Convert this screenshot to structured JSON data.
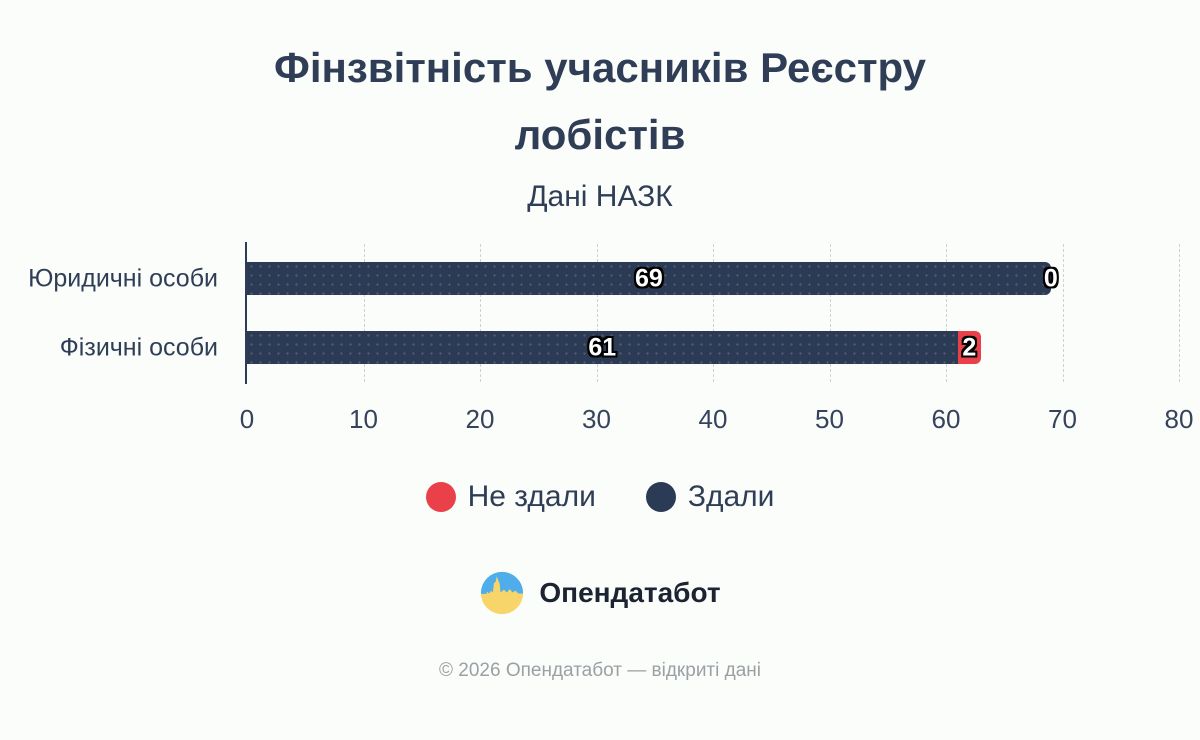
{
  "page": {
    "background_color": "#fbfdfa"
  },
  "header": {
    "title": "Фінзвітність учасників Реєстру лобістів",
    "subtitle": "Дані НАЗК"
  },
  "chart_data": {
    "type": "bar",
    "orientation": "horizontal",
    "title": "Фінзвітність учасників Реєстру лобістів",
    "subtitle": "Дані НАЗК",
    "categories": [
      "Юридичні особи",
      "Фізичні особи"
    ],
    "series": [
      {
        "name": "Здали",
        "color": "#2b3a55",
        "values": [
          69,
          61
        ]
      },
      {
        "name": "Не здали",
        "color": "#e9404a",
        "values": [
          0,
          2
        ]
      }
    ],
    "data_labels": {
      "filed": [
        "69",
        "61"
      ],
      "not_filed": [
        "0",
        "2"
      ]
    },
    "xlim": [
      0,
      80
    ],
    "x_ticks": [
      0,
      10,
      20,
      30,
      40,
      50,
      60,
      70,
      80
    ],
    "grid": "dashed-vertical",
    "legend_position": "bottom"
  },
  "legend": {
    "items": [
      {
        "label": "Не здали",
        "color": "#e9404a"
      },
      {
        "label": "Здали",
        "color": "#2b3a55"
      }
    ]
  },
  "footer": {
    "brand": "Опендатабот",
    "logo": "opendatabot-logo",
    "copyright": "© 2026 Опендатабот — відкриті дані"
  }
}
